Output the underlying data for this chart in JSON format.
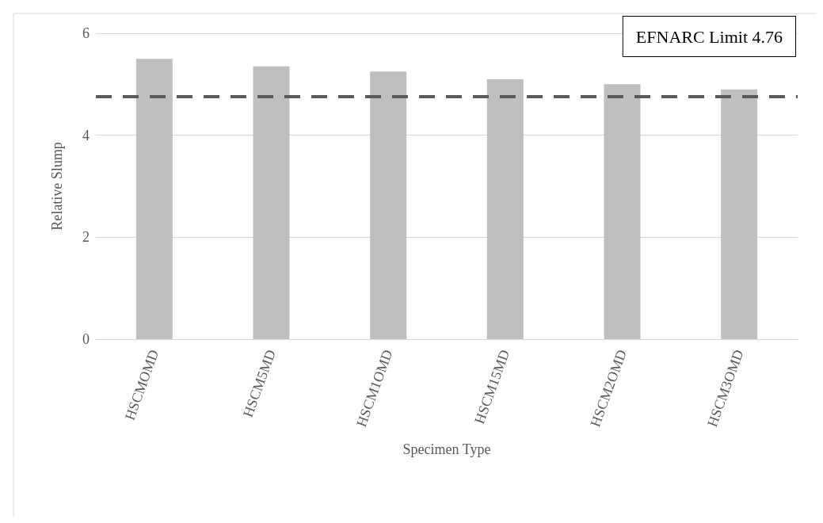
{
  "chart_data": {
    "type": "bar",
    "xlabel": "Specimen Type",
    "ylabel": "Relative Slump",
    "categories": [
      "HSCMOMD",
      "HSCM5MD",
      "HSCM1OMD",
      "HSCM15MD",
      "HSCM2OMD",
      "HSCM3OMD"
    ],
    "values": [
      5.5,
      5.35,
      5.25,
      5.1,
      5.0,
      4.9
    ],
    "color": "#bfbfbf",
    "ylim": [
      0,
      6
    ],
    "yticks": [
      0,
      2,
      4,
      6
    ],
    "grid": "y",
    "ref_lines": [
      {
        "axis": "y",
        "value": 4.76,
        "label": "EFNARC Limit 4.76",
        "color": "#595959",
        "line_style": "dashed"
      }
    ]
  }
}
